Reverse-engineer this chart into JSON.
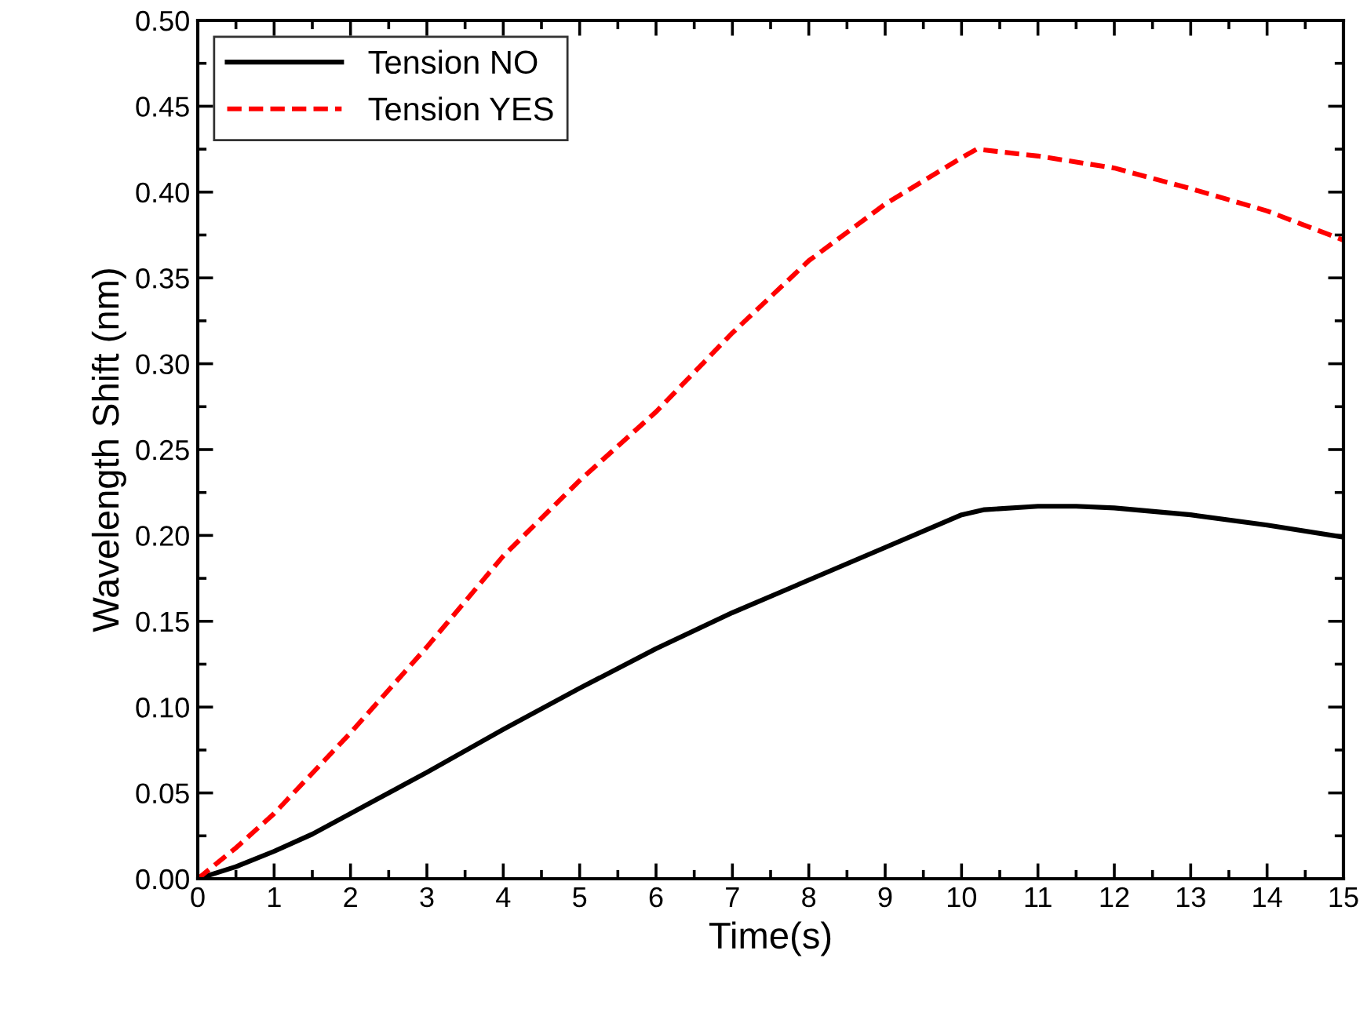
{
  "chart_data": {
    "type": "line",
    "xlabel": "Time(s)",
    "ylabel": "Wavelength Shift (nm)",
    "xlim": [
      0,
      15
    ],
    "ylim": [
      0,
      0.5
    ],
    "xticks": [
      0,
      1,
      2,
      3,
      4,
      5,
      6,
      7,
      8,
      9,
      10,
      11,
      12,
      13,
      14,
      15
    ],
    "yticks": [
      {
        "value": 0,
        "label": "0.00"
      },
      {
        "value": 0.05,
        "label": "0.05"
      },
      {
        "value": 0.1,
        "label": "0.10"
      },
      {
        "value": 0.15,
        "label": "0.15"
      },
      {
        "value": 0.2,
        "label": "0.20"
      },
      {
        "value": 0.25,
        "label": "0.25"
      },
      {
        "value": 0.3,
        "label": "0.30"
      },
      {
        "value": 0.35,
        "label": "0.35"
      },
      {
        "value": 0.4,
        "label": "0.40"
      },
      {
        "value": 0.45,
        "label": "0.45"
      },
      {
        "value": 0.5,
        "label": "0.50"
      }
    ],
    "legend": "top left",
    "grid": false,
    "series": [
      {
        "name": "Tension NO",
        "color": "#000000",
        "line_style": "solid",
        "x": [
          0,
          0.5,
          1,
          1.5,
          2,
          3,
          4,
          5,
          6,
          7,
          8,
          9,
          10,
          10.3,
          11,
          11.5,
          12,
          13,
          14,
          15
        ],
        "values": [
          0,
          0.007,
          0.016,
          0.026,
          0.038,
          0.062,
          0.087,
          0.111,
          0.134,
          0.155,
          0.174,
          0.193,
          0.212,
          0.215,
          0.217,
          0.217,
          0.216,
          0.212,
          0.206,
          0.199
        ]
      },
      {
        "name": "Tension YES",
        "color": "#ff0000",
        "line_style": "dashed",
        "x": [
          0,
          0.5,
          1,
          2,
          3,
          4,
          5,
          6,
          7,
          8,
          9,
          10,
          10.2,
          11,
          12,
          13,
          14,
          15
        ],
        "values": [
          0,
          0.018,
          0.038,
          0.085,
          0.135,
          0.188,
          0.232,
          0.272,
          0.318,
          0.36,
          0.393,
          0.42,
          0.425,
          0.421,
          0.414,
          0.402,
          0.389,
          0.372
        ]
      }
    ]
  }
}
